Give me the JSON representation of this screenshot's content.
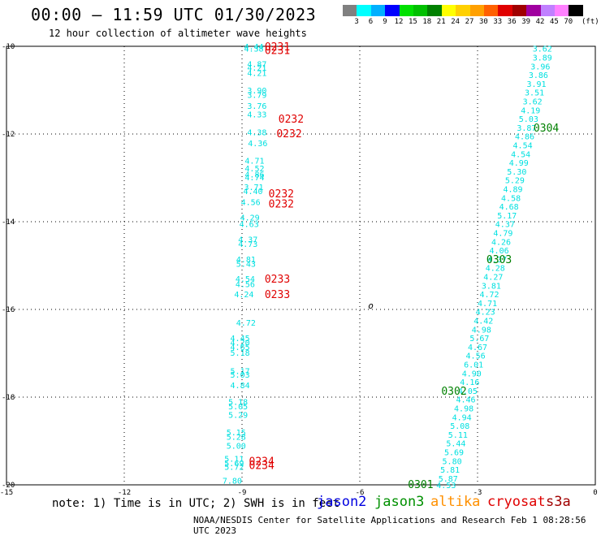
{
  "header": {
    "title": "00:00 – 11:59 UTC 01/30/2023",
    "subtitle": "12 hour collection of altimeter wave heights"
  },
  "colorbar": {
    "labels": [
      "3",
      "6",
      "9",
      "12",
      "15",
      "18",
      "21",
      "24",
      "27",
      "30",
      "33",
      "36",
      "39",
      "42",
      "45",
      "70"
    ],
    "unit": "(ft)",
    "colors": [
      "#808080",
      "#00ffff",
      "#00b0ff",
      "#0000ff",
      "#00e000",
      "#00c000",
      "#008000",
      "#ffff00",
      "#ffd000",
      "#ffa000",
      "#ff6000",
      "#e00000",
      "#a00000",
      "#a000a0",
      "#c080ff",
      "#ff80ff",
      "#000000"
    ]
  },
  "map": {
    "lon_ticks": [
      "-15",
      "-12",
      "-9",
      "-6",
      "-3",
      "0"
    ],
    "lat_ticks": [
      "-10",
      "-12",
      "-14",
      "-16",
      "-18",
      "-20"
    ],
    "lon_range": [
      -15,
      0
    ],
    "lat_range": [
      -20,
      -10
    ],
    "grid": "dotted",
    "island_marker": "o"
  },
  "observations": {
    "color": "#00e0e0",
    "track_west": [
      {
        "lon": -8.7,
        "lat": -10.0,
        "swh": "4.44"
      },
      {
        "lon": -8.7,
        "lat": -10.05,
        "swh": "4.38"
      },
      {
        "lon": -8.62,
        "lat": -10.4,
        "swh": "4.87"
      },
      {
        "lon": -8.62,
        "lat": -10.48,
        "swh": "4.21"
      },
      {
        "lon": -8.62,
        "lat": -10.6,
        "swh": "4.21"
      },
      {
        "lon": -8.62,
        "lat": -11.0,
        "swh": "3.90"
      },
      {
        "lon": -8.62,
        "lat": -11.1,
        "swh": "3.79"
      },
      {
        "lon": -8.62,
        "lat": -11.35,
        "swh": "3.76"
      },
      {
        "lon": -8.62,
        "lat": -11.55,
        "swh": "4.33"
      },
      {
        "lon": -8.62,
        "lat": -11.95,
        "swh": "4.38"
      },
      {
        "lon": -8.6,
        "lat": -12.2,
        "swh": "4.36"
      },
      {
        "lon": -8.68,
        "lat": -12.6,
        "swh": "4.71"
      },
      {
        "lon": -8.68,
        "lat": -12.78,
        "swh": "4.52"
      },
      {
        "lon": -8.68,
        "lat": -12.92,
        "swh": "4.86"
      },
      {
        "lon": -8.68,
        "lat": -12.98,
        "swh": "4.74"
      },
      {
        "lon": -8.7,
        "lat": -13.2,
        "swh": "3.71"
      },
      {
        "lon": -8.72,
        "lat": -13.3,
        "swh": "4.40"
      },
      {
        "lon": -8.78,
        "lat": -13.55,
        "swh": "4.56"
      },
      {
        "lon": -8.8,
        "lat": -13.9,
        "swh": "4.29"
      },
      {
        "lon": -8.82,
        "lat": -14.05,
        "swh": "4.63"
      },
      {
        "lon": -8.85,
        "lat": -14.4,
        "swh": "4.37"
      },
      {
        "lon": -8.85,
        "lat": -14.5,
        "swh": "4.73"
      },
      {
        "lon": -8.9,
        "lat": -14.85,
        "swh": "4.81"
      },
      {
        "lon": -8.9,
        "lat": -14.95,
        "swh": "5.43"
      },
      {
        "lon": -8.92,
        "lat": -15.3,
        "swh": "4.54"
      },
      {
        "lon": -8.92,
        "lat": -15.42,
        "swh": "4.56"
      },
      {
        "lon": -8.95,
        "lat": -15.65,
        "swh": "4.24"
      },
      {
        "lon": -8.9,
        "lat": -16.3,
        "swh": "4.72"
      },
      {
        "lon": -9.05,
        "lat": -16.65,
        "swh": "4.45"
      },
      {
        "lon": -9.05,
        "lat": -16.75,
        "swh": "4.20"
      },
      {
        "lon": -9.05,
        "lat": -16.85,
        "swh": "4.65"
      },
      {
        "lon": -9.05,
        "lat": -16.98,
        "swh": "5.18"
      },
      {
        "lon": -9.05,
        "lat": -17.4,
        "swh": "5.17"
      },
      {
        "lon": -9.05,
        "lat": -17.48,
        "swh": "5.03"
      },
      {
        "lon": -9.05,
        "lat": -17.72,
        "swh": "4.84"
      },
      {
        "lon": -9.1,
        "lat": -18.1,
        "swh": "5.18"
      },
      {
        "lon": -9.1,
        "lat": -18.2,
        "swh": "5.05"
      },
      {
        "lon": -9.1,
        "lat": -18.4,
        "swh": "5.29"
      },
      {
        "lon": -9.15,
        "lat": -18.8,
        "swh": "5.15"
      },
      {
        "lon": -9.15,
        "lat": -18.9,
        "swh": "5.28"
      },
      {
        "lon": -9.15,
        "lat": -19.1,
        "swh": "5.00"
      },
      {
        "lon": -9.2,
        "lat": -19.4,
        "swh": "5.11"
      },
      {
        "lon": -9.2,
        "lat": -19.5,
        "swh": "5.69"
      },
      {
        "lon": -9.2,
        "lat": -19.58,
        "swh": "5.72"
      },
      {
        "lon": -9.25,
        "lat": -19.9,
        "swh": "7.80"
      }
    ],
    "track_east": [
      {
        "lon": -1.35,
        "lat": -10.05,
        "swh": "3.62"
      },
      {
        "lon": -1.35,
        "lat": -10.25,
        "swh": "3.89"
      },
      {
        "lon": -1.4,
        "lat": -10.45,
        "swh": "3.96"
      },
      {
        "lon": -1.45,
        "lat": -10.65,
        "swh": "3.86"
      },
      {
        "lon": -1.5,
        "lat": -10.85,
        "swh": "3.91"
      },
      {
        "lon": -1.55,
        "lat": -11.05,
        "swh": "3.51"
      },
      {
        "lon": -1.6,
        "lat": -11.25,
        "swh": "3.62"
      },
      {
        "lon": -1.65,
        "lat": -11.45,
        "swh": "4.19"
      },
      {
        "lon": -1.7,
        "lat": -11.65,
        "swh": "5.03"
      },
      {
        "lon": -1.75,
        "lat": -11.85,
        "swh": "3.87"
      },
      {
        "lon": -1.8,
        "lat": -12.05,
        "swh": "4.86"
      },
      {
        "lon": -1.85,
        "lat": -12.25,
        "swh": "4.54"
      },
      {
        "lon": -1.9,
        "lat": -12.45,
        "swh": "4.54"
      },
      {
        "lon": -1.95,
        "lat": -12.65,
        "swh": "4.99"
      },
      {
        "lon": -2.0,
        "lat": -12.85,
        "swh": "5.30"
      },
      {
        "lon": -2.05,
        "lat": -13.05,
        "swh": "5.29"
      },
      {
        "lon": -2.1,
        "lat": -13.25,
        "swh": "4.89"
      },
      {
        "lon": -2.15,
        "lat": -13.45,
        "swh": "4.58"
      },
      {
        "lon": -2.2,
        "lat": -13.65,
        "swh": "4.68"
      },
      {
        "lon": -2.25,
        "lat": -13.85,
        "swh": "5.17"
      },
      {
        "lon": -2.3,
        "lat": -14.05,
        "swh": "4.37"
      },
      {
        "lon": -2.35,
        "lat": -14.25,
        "swh": "4.79"
      },
      {
        "lon": -2.4,
        "lat": -14.45,
        "swh": "4.26"
      },
      {
        "lon": -2.45,
        "lat": -14.65,
        "swh": "4.06"
      },
      {
        "lon": -2.5,
        "lat": -14.85,
        "swh": "4.37"
      },
      {
        "lon": -2.55,
        "lat": -15.05,
        "swh": "4.28"
      },
      {
        "lon": -2.6,
        "lat": -15.25,
        "swh": "4.27"
      },
      {
        "lon": -2.65,
        "lat": -15.45,
        "swh": "3.81"
      },
      {
        "lon": -2.7,
        "lat": -15.65,
        "swh": "4.72"
      },
      {
        "lon": -2.75,
        "lat": -15.85,
        "swh": "4.71"
      },
      {
        "lon": -2.8,
        "lat": -16.05,
        "swh": "4.23"
      },
      {
        "lon": -2.85,
        "lat": -16.25,
        "swh": "4.42"
      },
      {
        "lon": -2.9,
        "lat": -16.45,
        "swh": "4.98"
      },
      {
        "lon": -2.95,
        "lat": -16.65,
        "swh": "5.67"
      },
      {
        "lon": -3.0,
        "lat": -16.85,
        "swh": "4.67"
      },
      {
        "lon": -3.05,
        "lat": -17.05,
        "swh": "4.56"
      },
      {
        "lon": -3.1,
        "lat": -17.25,
        "swh": "6.01"
      },
      {
        "lon": -3.15,
        "lat": -17.45,
        "swh": "4.90"
      },
      {
        "lon": -3.2,
        "lat": -17.65,
        "swh": "4.16"
      },
      {
        "lon": -3.25,
        "lat": -17.85,
        "swh": "4.05"
      },
      {
        "lon": -3.3,
        "lat": -18.05,
        "swh": "4.46"
      },
      {
        "lon": -3.35,
        "lat": -18.25,
        "swh": "4.98"
      },
      {
        "lon": -3.4,
        "lat": -18.45,
        "swh": "4.94"
      },
      {
        "lon": -3.45,
        "lat": -18.65,
        "swh": "5.08"
      },
      {
        "lon": -3.5,
        "lat": -18.85,
        "swh": "5.11"
      },
      {
        "lon": -3.55,
        "lat": -19.05,
        "swh": "5.44"
      },
      {
        "lon": -3.6,
        "lat": -19.25,
        "swh": "5.69"
      },
      {
        "lon": -3.65,
        "lat": -19.45,
        "swh": "5.80"
      },
      {
        "lon": -3.7,
        "lat": -19.65,
        "swh": "5.81"
      },
      {
        "lon": -3.75,
        "lat": -19.85,
        "swh": "5.87"
      },
      {
        "lon": -3.8,
        "lat": -20.0,
        "swh": "4.53"
      }
    ]
  },
  "time_labels": [
    {
      "lon": -8.1,
      "lat": -10.0,
      "text": "0231",
      "color": "#e00000"
    },
    {
      "lon": -8.1,
      "lat": -10.08,
      "text": "0231",
      "color": "#e00000"
    },
    {
      "lon": -7.75,
      "lat": -11.65,
      "text": "0232",
      "color": "#e00000"
    },
    {
      "lon": -7.8,
      "lat": -11.98,
      "text": "0232",
      "color": "#e00000"
    },
    {
      "lon": -8.0,
      "lat": -13.35,
      "text": "0232",
      "color": "#e00000"
    },
    {
      "lon": -8.0,
      "lat": -13.58,
      "text": "0232",
      "color": "#e00000"
    },
    {
      "lon": -8.1,
      "lat": -15.3,
      "text": "0233",
      "color": "#e00000"
    },
    {
      "lon": -8.1,
      "lat": -15.65,
      "text": "0233",
      "color": "#e00000"
    },
    {
      "lon": -8.5,
      "lat": -19.45,
      "text": "0234",
      "color": "#e00000"
    },
    {
      "lon": -8.5,
      "lat": -19.55,
      "text": "0234",
      "color": "#e00000"
    },
    {
      "lon": -1.25,
      "lat": -11.85,
      "text": "0304",
      "color": "#008000"
    },
    {
      "lon": -2.45,
      "lat": -14.85,
      "text": "0303",
      "color": "#008000"
    },
    {
      "lon": -3.6,
      "lat": -17.85,
      "text": "0302",
      "color": "#008000"
    },
    {
      "lon": -4.45,
      "lat": -19.98,
      "text": "0301",
      "color": "#008000"
    }
  ],
  "footer": {
    "note": "note: 1) Time is in UTC; 2) SWH is in feet",
    "satellites": [
      {
        "name": "jason2",
        "color": "#0000e0"
      },
      {
        "name": "jason3",
        "color": "#009000"
      },
      {
        "name": "altika",
        "color": "#ff9000"
      },
      {
        "name": "cryosat",
        "color": "#e00000"
      },
      {
        "name": "s3a",
        "color": "#a00000"
      }
    ],
    "credit": "NOAA/NESDIS Center for Satellite Applications and Research   Feb  1 08:28:56 UTC 2023"
  }
}
